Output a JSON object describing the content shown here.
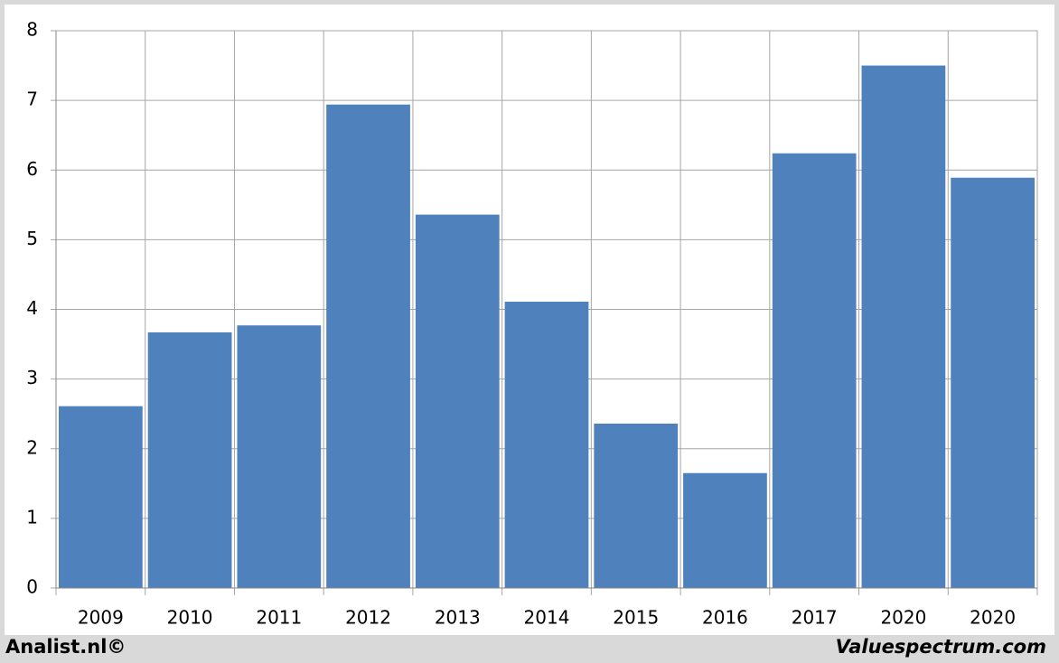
{
  "chart_data": {
    "type": "bar",
    "categories": [
      "2009",
      "2010",
      "2011",
      "2012",
      "2013",
      "2014",
      "2015",
      "2016",
      "2017",
      "2020",
      "2020"
    ],
    "values": [
      2.61,
      3.67,
      3.77,
      6.94,
      5.36,
      4.11,
      2.36,
      1.65,
      6.24,
      7.5,
      5.89
    ],
    "color": "#4f81bd",
    "ylim": [
      0,
      8
    ],
    "yticks": [
      0,
      1,
      2,
      3,
      4,
      5,
      6,
      7,
      8
    ],
    "grid": true
  },
  "footer": {
    "left": "Analist.nl©",
    "right": "Valuespectrum.com"
  }
}
